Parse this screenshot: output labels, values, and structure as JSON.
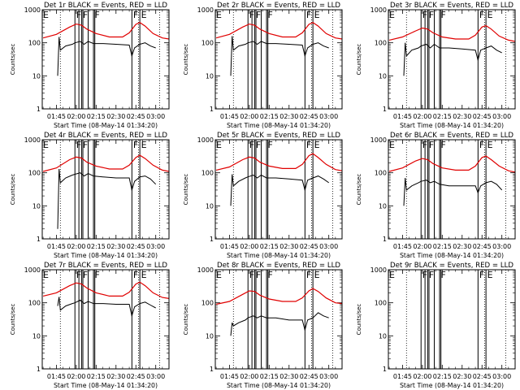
{
  "chart_data": {
    "type": "line",
    "layout": "3x3 grid",
    "common": {
      "ylabel": "Counts/sec",
      "xlabel": "Start Time (08-May-14 01:34:20)",
      "x_ticks": [
        "01:45",
        "02:00",
        "02:15",
        "02:30",
        "02:45",
        "03:00"
      ],
      "y_ticks": [
        "1",
        "10",
        "100",
        "1000"
      ],
      "y_scale": "log",
      "ylim": [
        1,
        1000
      ],
      "xlim": [
        "01:34:20",
        "03:10"
      ],
      "dotted_lines_at": [
        "01:48",
        "02:47",
        "03:03"
      ],
      "solid_lines_at": [
        "01:59",
        "02:02",
        "02:04",
        "02:05",
        "02:09",
        "02:13",
        "02:14",
        "02:42",
        "02:48"
      ],
      "markers": [
        {
          "label": "E",
          "at": "01:34"
        },
        {
          "label": "F",
          "at": "01:59"
        },
        {
          "label": "F",
          "at": "02:04"
        },
        {
          "label": "F",
          "at": "02:13"
        },
        {
          "label": "F",
          "at": "02:42"
        },
        {
          "label": "E",
          "at": "02:48"
        }
      ],
      "colors": {
        "events": "#000000",
        "lld": "#e00000"
      }
    },
    "panels": [
      {
        "title": "Det 1r BLACK = Events, RED = LLD",
        "events": [
          [
            "01:46",
            10
          ],
          [
            "01:47",
            150
          ],
          [
            "01:48",
            60
          ],
          [
            "01:52",
            80
          ],
          [
            "01:57",
            90
          ],
          [
            "01:59",
            100
          ],
          [
            "02:03",
            110
          ],
          [
            "02:06",
            90
          ],
          [
            "02:09",
            110
          ],
          [
            "02:13",
            95
          ],
          [
            "02:20",
            95
          ],
          [
            "02:30",
            90
          ],
          [
            "02:40",
            85
          ],
          [
            "02:42",
            40
          ],
          [
            "02:44",
            70
          ],
          [
            "02:48",
            90
          ],
          [
            "02:52",
            100
          ],
          [
            "02:56",
            80
          ],
          [
            "03:00",
            70
          ]
        ],
        "lld": [
          [
            "01:35",
            140
          ],
          [
            "01:45",
            180
          ],
          [
            "01:55",
            300
          ],
          [
            "02:00",
            370
          ],
          [
            "02:04",
            340
          ],
          [
            "02:08",
            260
          ],
          [
            "02:15",
            190
          ],
          [
            "02:25",
            150
          ],
          [
            "02:35",
            150
          ],
          [
            "02:40",
            200
          ],
          [
            "02:45",
            360
          ],
          [
            "02:48",
            410
          ],
          [
            "02:52",
            320
          ],
          [
            "02:58",
            190
          ],
          [
            "03:05",
            140
          ],
          [
            "03:10",
            130
          ]
        ]
      },
      {
        "title": "Det 2r BLACK = Events, RED = LLD",
        "events": [
          [
            "01:46",
            10
          ],
          [
            "01:47",
            160
          ],
          [
            "01:48",
            60
          ],
          [
            "01:52",
            80
          ],
          [
            "01:57",
            90
          ],
          [
            "01:59",
            100
          ],
          [
            "02:03",
            110
          ],
          [
            "02:06",
            90
          ],
          [
            "02:09",
            110
          ],
          [
            "02:13",
            95
          ],
          [
            "02:20",
            95
          ],
          [
            "02:30",
            90
          ],
          [
            "02:40",
            85
          ],
          [
            "02:42",
            40
          ],
          [
            "02:44",
            70
          ],
          [
            "02:48",
            90
          ],
          [
            "02:52",
            100
          ],
          [
            "02:56",
            80
          ],
          [
            "03:00",
            70
          ]
        ],
        "lld": [
          [
            "01:35",
            140
          ],
          [
            "01:45",
            180
          ],
          [
            "01:55",
            300
          ],
          [
            "02:00",
            370
          ],
          [
            "02:04",
            340
          ],
          [
            "02:08",
            260
          ],
          [
            "02:15",
            190
          ],
          [
            "02:25",
            150
          ],
          [
            "02:35",
            150
          ],
          [
            "02:40",
            200
          ],
          [
            "02:45",
            360
          ],
          [
            "02:48",
            410
          ],
          [
            "02:52",
            320
          ],
          [
            "02:58",
            190
          ],
          [
            "03:05",
            140
          ],
          [
            "03:10",
            130
          ]
        ]
      },
      {
        "title": "Det 3r BLACK = Events, RED = LLD",
        "events": [
          [
            "01:46",
            10
          ],
          [
            "01:47",
            100
          ],
          [
            "01:48",
            40
          ],
          [
            "01:52",
            60
          ],
          [
            "01:57",
            70
          ],
          [
            "01:59",
            80
          ],
          [
            "02:03",
            90
          ],
          [
            "02:06",
            70
          ],
          [
            "02:09",
            90
          ],
          [
            "02:13",
            70
          ],
          [
            "02:20",
            70
          ],
          [
            "02:30",
            65
          ],
          [
            "02:40",
            60
          ],
          [
            "02:42",
            30
          ],
          [
            "02:44",
            60
          ],
          [
            "02:48",
            70
          ],
          [
            "02:52",
            80
          ],
          [
            "02:56",
            60
          ],
          [
            "03:00",
            50
          ]
        ],
        "lld": [
          [
            "01:35",
            120
          ],
          [
            "01:45",
            150
          ],
          [
            "01:55",
            230
          ],
          [
            "02:00",
            280
          ],
          [
            "02:04",
            260
          ],
          [
            "02:08",
            200
          ],
          [
            "02:15",
            150
          ],
          [
            "02:25",
            130
          ],
          [
            "02:35",
            130
          ],
          [
            "02:40",
            170
          ],
          [
            "02:45",
            300
          ],
          [
            "02:48",
            330
          ],
          [
            "02:52",
            260
          ],
          [
            "02:58",
            160
          ],
          [
            "03:05",
            120
          ],
          [
            "03:10",
            110
          ]
        ]
      },
      {
        "title": "Det 4r BLACK = Events, RED = LLD",
        "events": [
          [
            "01:46",
            2
          ],
          [
            "01:47",
            130
          ],
          [
            "01:48",
            50
          ],
          [
            "01:52",
            70
          ],
          [
            "01:57",
            85
          ],
          [
            "01:59",
            90
          ],
          [
            "02:03",
            100
          ],
          [
            "02:06",
            80
          ],
          [
            "02:09",
            95
          ],
          [
            "02:13",
            80
          ],
          [
            "02:20",
            75
          ],
          [
            "02:30",
            70
          ],
          [
            "02:40",
            70
          ],
          [
            "02:42",
            30
          ],
          [
            "02:44",
            55
          ],
          [
            "02:48",
            75
          ],
          [
            "02:52",
            80
          ],
          [
            "02:56",
            65
          ],
          [
            "03:00",
            45
          ]
        ],
        "lld": [
          [
            "01:35",
            110
          ],
          [
            "01:45",
            140
          ],
          [
            "01:55",
            250
          ],
          [
            "02:00",
            300
          ],
          [
            "02:04",
            280
          ],
          [
            "02:08",
            210
          ],
          [
            "02:15",
            160
          ],
          [
            "02:25",
            130
          ],
          [
            "02:35",
            130
          ],
          [
            "02:40",
            170
          ],
          [
            "02:45",
            290
          ],
          [
            "02:48",
            340
          ],
          [
            "02:52",
            270
          ],
          [
            "02:58",
            170
          ],
          [
            "03:05",
            120
          ],
          [
            "03:10",
            110
          ]
        ]
      },
      {
        "title": "Det 5r BLACK = Events, RED = LLD",
        "events": [
          [
            "01:46",
            10
          ],
          [
            "01:47",
            90
          ],
          [
            "01:48",
            40
          ],
          [
            "01:52",
            55
          ],
          [
            "01:57",
            70
          ],
          [
            "01:59",
            75
          ],
          [
            "02:03",
            85
          ],
          [
            "02:06",
            70
          ],
          [
            "02:09",
            85
          ],
          [
            "02:13",
            70
          ],
          [
            "02:20",
            70
          ],
          [
            "02:30",
            65
          ],
          [
            "02:40",
            60
          ],
          [
            "02:42",
            30
          ],
          [
            "02:44",
            60
          ],
          [
            "02:48",
            70
          ],
          [
            "02:52",
            80
          ],
          [
            "02:56",
            65
          ],
          [
            "03:00",
            50
          ]
        ],
        "lld": [
          [
            "01:35",
            120
          ],
          [
            "01:45",
            150
          ],
          [
            "01:55",
            250
          ],
          [
            "02:00",
            300
          ],
          [
            "02:04",
            280
          ],
          [
            "02:08",
            210
          ],
          [
            "02:15",
            160
          ],
          [
            "02:25",
            135
          ],
          [
            "02:35",
            135
          ],
          [
            "02:40",
            180
          ],
          [
            "02:45",
            330
          ],
          [
            "02:48",
            380
          ],
          [
            "02:52",
            290
          ],
          [
            "02:58",
            180
          ],
          [
            "03:05",
            125
          ],
          [
            "03:10",
            115
          ]
        ]
      },
      {
        "title": "Det 6r BLACK = Events, RED = LLD",
        "events": [
          [
            "01:46",
            10
          ],
          [
            "01:47",
            70
          ],
          [
            "01:48",
            30
          ],
          [
            "01:52",
            40
          ],
          [
            "01:57",
            50
          ],
          [
            "01:59",
            55
          ],
          [
            "02:03",
            60
          ],
          [
            "02:06",
            50
          ],
          [
            "02:09",
            55
          ],
          [
            "02:13",
            45
          ],
          [
            "02:20",
            40
          ],
          [
            "02:30",
            40
          ],
          [
            "02:40",
            40
          ],
          [
            "02:42",
            25
          ],
          [
            "02:44",
            40
          ],
          [
            "02:48",
            50
          ],
          [
            "02:52",
            55
          ],
          [
            "02:56",
            45
          ],
          [
            "03:00",
            30
          ]
        ],
        "lld": [
          [
            "01:35",
            110
          ],
          [
            "01:45",
            140
          ],
          [
            "01:55",
            230
          ],
          [
            "02:00",
            270
          ],
          [
            "02:04",
            250
          ],
          [
            "02:08",
            190
          ],
          [
            "02:15",
            140
          ],
          [
            "02:25",
            120
          ],
          [
            "02:35",
            120
          ],
          [
            "02:40",
            160
          ],
          [
            "02:45",
            290
          ],
          [
            "02:48",
            320
          ],
          [
            "02:52",
            250
          ],
          [
            "02:58",
            160
          ],
          [
            "03:05",
            115
          ],
          [
            "03:10",
            105
          ]
        ]
      },
      {
        "title": "Det 7r BLACK = Events, RED = LLD",
        "events": [
          [
            "01:46",
            80
          ],
          [
            "01:47",
            150
          ],
          [
            "01:48",
            60
          ],
          [
            "01:52",
            80
          ],
          [
            "01:57",
            95
          ],
          [
            "01:59",
            100
          ],
          [
            "02:03",
            120
          ],
          [
            "02:06",
            95
          ],
          [
            "02:09",
            110
          ],
          [
            "02:13",
            95
          ],
          [
            "02:20",
            95
          ],
          [
            "02:30",
            90
          ],
          [
            "02:40",
            90
          ],
          [
            "02:42",
            40
          ],
          [
            "02:44",
            75
          ],
          [
            "02:48",
            95
          ],
          [
            "02:52",
            105
          ],
          [
            "02:56",
            85
          ],
          [
            "03:00",
            70
          ]
        ],
        "lld": [
          [
            "01:35",
            160
          ],
          [
            "01:45",
            200
          ],
          [
            "01:55",
            330
          ],
          [
            "02:00",
            400
          ],
          [
            "02:04",
            370
          ],
          [
            "02:08",
            280
          ],
          [
            "02:15",
            200
          ],
          [
            "02:25",
            160
          ],
          [
            "02:35",
            160
          ],
          [
            "02:40",
            210
          ],
          [
            "02:45",
            370
          ],
          [
            "02:48",
            420
          ],
          [
            "02:52",
            330
          ],
          [
            "02:58",
            200
          ],
          [
            "03:05",
            145
          ],
          [
            "03:10",
            135
          ]
        ]
      },
      {
        "title": "Det 8r BLACK = Events, RED = LLD",
        "events": [
          [
            "01:46",
            10
          ],
          [
            "01:47",
            25
          ],
          [
            "01:48",
            20
          ],
          [
            "01:52",
            25
          ],
          [
            "01:57",
            30
          ],
          [
            "01:59",
            35
          ],
          [
            "02:03",
            40
          ],
          [
            "02:06",
            35
          ],
          [
            "02:09",
            40
          ],
          [
            "02:13",
            35
          ],
          [
            "02:20",
            35
          ],
          [
            "02:30",
            30
          ],
          [
            "02:40",
            30
          ],
          [
            "02:42",
            15
          ],
          [
            "02:44",
            30
          ],
          [
            "02:48",
            35
          ],
          [
            "02:52",
            50
          ],
          [
            "02:56",
            40
          ],
          [
            "03:00",
            35
          ]
        ],
        "lld": [
          [
            "01:35",
            90
          ],
          [
            "01:45",
            110
          ],
          [
            "01:55",
            180
          ],
          [
            "02:00",
            230
          ],
          [
            "02:04",
            220
          ],
          [
            "02:08",
            170
          ],
          [
            "02:15",
            130
          ],
          [
            "02:25",
            110
          ],
          [
            "02:35",
            110
          ],
          [
            "02:40",
            140
          ],
          [
            "02:45",
            230
          ],
          [
            "02:48",
            270
          ],
          [
            "02:52",
            220
          ],
          [
            "02:58",
            140
          ],
          [
            "03:05",
            100
          ],
          [
            "03:10",
            95
          ]
        ]
      },
      {
        "title": "Det 9r BLACK = Events, RED = LLD",
        "events": [],
        "lld": []
      }
    ]
  }
}
